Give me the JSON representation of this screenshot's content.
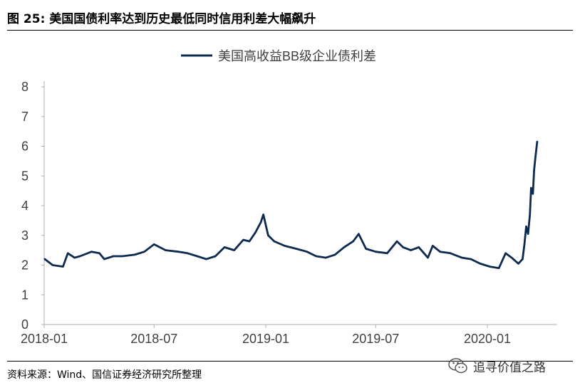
{
  "header": {
    "title": "图  25:  美国国债利率达到历史最低同时信用利差大幅飙升"
  },
  "footer": {
    "source": "资料来源：Wind、国信证券经济研究所整理"
  },
  "watermark": {
    "text": "追寻价值之路",
    "icon": "wechat-icon"
  },
  "colors": {
    "line": "#0d2a4f",
    "axis": "#b0b0b0",
    "text": "#404040"
  },
  "chart_data": {
    "type": "line",
    "title": "",
    "xlabel": "",
    "ylabel": "",
    "ylim": [
      0,
      8
    ],
    "yticks": [
      "0",
      "1",
      "2",
      "3",
      "4",
      "5",
      "6",
      "7",
      "8"
    ],
    "xticks": [
      "2018-01",
      "2018-07",
      "2019-01",
      "2019-07",
      "2020-01"
    ],
    "grid": false,
    "legend": "top-center",
    "series": [
      {
        "name": "美国高收益BB级企业债利差",
        "x": [
          "2018-01-02",
          "2018-01-15",
          "2018-02-01",
          "2018-02-09",
          "2018-02-20",
          "2018-03-01",
          "2018-03-20",
          "2018-04-02",
          "2018-04-10",
          "2018-04-25",
          "2018-05-10",
          "2018-05-30",
          "2018-06-15",
          "2018-07-01",
          "2018-07-20",
          "2018-08-10",
          "2018-08-25",
          "2018-09-10",
          "2018-09-25",
          "2018-10-10",
          "2018-10-25",
          "2018-11-10",
          "2018-11-25",
          "2018-12-05",
          "2018-12-15",
          "2018-12-24",
          "2018-12-28",
          "2019-01-05",
          "2019-01-15",
          "2019-02-01",
          "2019-02-20",
          "2019-03-10",
          "2019-03-25",
          "2019-04-10",
          "2019-04-25",
          "2019-05-10",
          "2019-05-25",
          "2019-06-03",
          "2019-06-15",
          "2019-07-01",
          "2019-07-20",
          "2019-08-05",
          "2019-08-15",
          "2019-08-28",
          "2019-09-10",
          "2019-09-25",
          "2019-10-03",
          "2019-10-15",
          "2019-11-01",
          "2019-11-20",
          "2019-12-05",
          "2019-12-20",
          "2020-01-05",
          "2020-01-20",
          "2020-01-31",
          "2020-02-10",
          "2020-02-21",
          "2020-02-28",
          "2020-03-02",
          "2020-03-05",
          "2020-03-08",
          "2020-03-11",
          "2020-03-13",
          "2020-03-16",
          "2020-03-18",
          "2020-03-20",
          "2020-03-23"
        ],
        "values": [
          2.2,
          2.0,
          1.95,
          2.4,
          2.25,
          2.3,
          2.45,
          2.4,
          2.2,
          2.3,
          2.3,
          2.35,
          2.45,
          2.7,
          2.5,
          2.45,
          2.4,
          2.3,
          2.2,
          2.3,
          2.6,
          2.5,
          2.85,
          2.8,
          3.1,
          3.45,
          3.7,
          3.0,
          2.8,
          2.65,
          2.55,
          2.45,
          2.3,
          2.25,
          2.35,
          2.6,
          2.8,
          3.05,
          2.55,
          2.45,
          2.4,
          2.8,
          2.6,
          2.5,
          2.6,
          2.25,
          2.65,
          2.45,
          2.4,
          2.25,
          2.2,
          2.05,
          1.95,
          1.9,
          2.4,
          2.25,
          2.05,
          2.2,
          2.7,
          3.3,
          3.05,
          3.7,
          4.6,
          4.4,
          5.2,
          5.6,
          6.15
        ]
      }
    ]
  }
}
